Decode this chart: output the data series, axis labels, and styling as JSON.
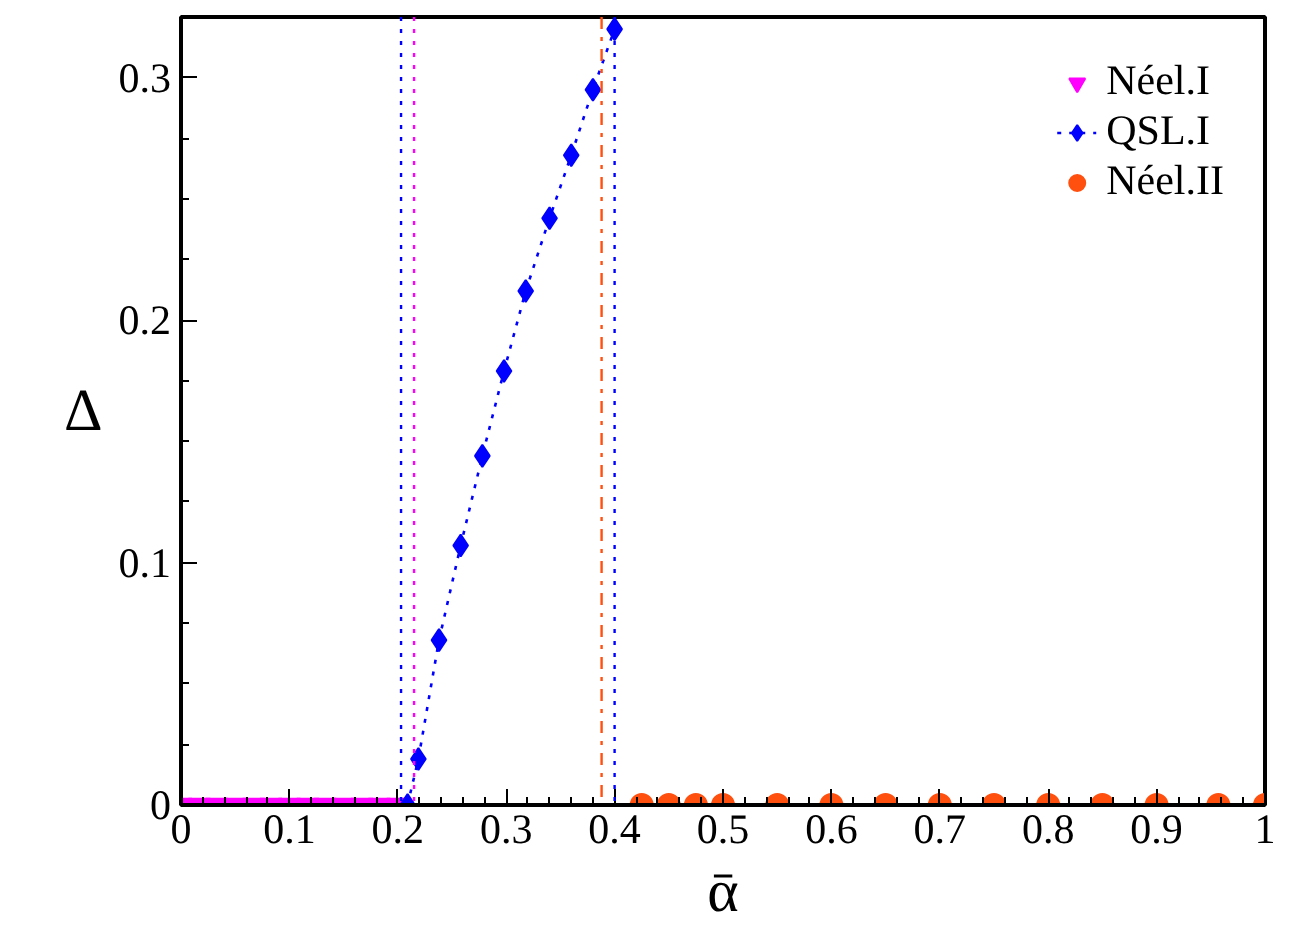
{
  "chart_data": {
    "type": "scatter",
    "xlabel": "ᾱ",
    "ylabel": "Δ",
    "xlim": [
      0,
      1
    ],
    "ylim": [
      0,
      0.325
    ],
    "xticks": [
      0,
      0.1,
      0.2,
      0.3,
      0.4,
      0.5,
      0.6,
      0.7,
      0.8,
      0.9,
      1
    ],
    "yticks": [
      0,
      0.1,
      0.2,
      0.3
    ],
    "grid": false,
    "legend": "top right",
    "series": [
      {
        "name": "Néel.I",
        "color": "#ff00ff",
        "marker": "triangle",
        "x": [
          0,
          0.017,
          0.033,
          0.05,
          0.067,
          0.083,
          0.1,
          0.117,
          0.133,
          0.15,
          0.167,
          0.183,
          0.2
        ],
        "values": [
          0,
          0,
          0,
          0,
          0,
          0,
          0,
          0,
          0,
          0,
          0,
          0,
          0
        ]
      },
      {
        "name": "QSL.I",
        "type": "line",
        "color": "#0000ff",
        "marker": "diamond",
        "line_style": "dotted",
        "x": [
          0.209,
          0.219,
          0.238,
          0.258,
          0.278,
          0.298,
          0.318,
          0.34,
          0.36,
          0.38,
          0.4
        ],
        "values": [
          0,
          0.019,
          0.068,
          0.107,
          0.144,
          0.179,
          0.212,
          0.242,
          0.268,
          0.295,
          0.32
        ]
      },
      {
        "name": "Néel.II",
        "color": "#ff5010",
        "marker": "circle",
        "x": [
          0.425,
          0.45,
          0.475,
          0.5,
          0.55,
          0.6,
          0.65,
          0.7,
          0.75,
          0.8,
          0.85,
          0.9,
          0.957,
          1.0
        ],
        "values": [
          0,
          0,
          0,
          0,
          0,
          0,
          0,
          0,
          0,
          0,
          0,
          0,
          0,
          0
        ]
      }
    ],
    "ref_lines": [
      {
        "axis": "x",
        "value": 0.203,
        "color": "#0000ff",
        "line_style": "dotted"
      },
      {
        "axis": "x",
        "value": 0.215,
        "color": "#ff00ff",
        "line_style": "dotted"
      },
      {
        "axis": "x",
        "value": 0.388,
        "color": "#ff5010",
        "line_style": "dashdot"
      },
      {
        "axis": "x",
        "value": 0.4,
        "color": "#0000ff",
        "line_style": "dotted"
      }
    ]
  }
}
